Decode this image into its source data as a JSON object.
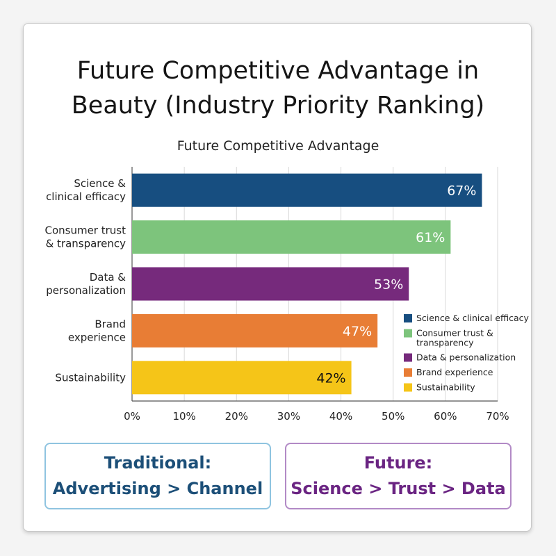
{
  "title": "Future Competitive Advantage in Beauty (Industry Priority Ranking)",
  "chart_data": {
    "type": "bar",
    "orientation": "horizontal",
    "title": "Future Competitive Advantage",
    "categories": [
      "Science & clinical efficacy",
      "Consumer trust & transparency",
      "Data & personalization",
      "Brand experience",
      "Sustainability"
    ],
    "category_labels": [
      [
        "Science &",
        "clinical efficacy"
      ],
      [
        "Consumer trust",
        "& transparency"
      ],
      [
        "Data &",
        "personalization"
      ],
      [
        "Brand",
        "experience"
      ],
      [
        "Sustainability"
      ]
    ],
    "values": [
      67,
      61,
      53,
      47,
      42
    ],
    "data_labels": [
      "67%",
      "61%",
      "53%",
      "47%",
      "42%"
    ],
    "colors": [
      "#174e80",
      "#7dc47c",
      "#762a7c",
      "#e87d35",
      "#f5c518"
    ],
    "label_colors": [
      "#ffffff",
      "#ffffff",
      "#ffffff",
      "#ffffff",
      "#111111"
    ],
    "xlim": [
      0,
      70
    ],
    "x_ticks": [
      0,
      10,
      20,
      30,
      40,
      50,
      60,
      70
    ],
    "x_tick_labels": [
      "0%",
      "10%",
      "20%",
      "30%",
      "40%",
      "50%",
      "60%",
      "70%"
    ],
    "grid": true,
    "legend_position": "lower-right",
    "legend": [
      [
        "Science & clinical efficacy"
      ],
      [
        "Consumer trust &",
        "transparency"
      ],
      [
        "Data & personalization"
      ],
      [
        "Brand experience"
      ],
      [
        "Sustainability"
      ]
    ]
  },
  "boxes": {
    "traditional": {
      "line1": "Traditional:",
      "line2": "Advertising > Channel"
    },
    "future": {
      "line1": "Future:",
      "line2": "Science > Trust > Data"
    }
  }
}
